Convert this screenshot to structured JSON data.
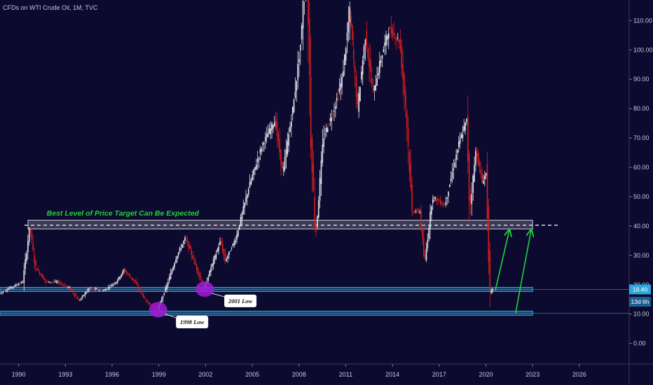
{
  "header": {
    "symbol_line": "CFDs on WTI Crude Oil, 1M, TVC"
  },
  "colors": {
    "background": "#0c0a2e",
    "up_candle": "#e8e8f0",
    "down_candle": "#d81e1e",
    "zone_line": "#2aa9e0",
    "target_box": "#c8c8d0",
    "arrow": "#22d43a",
    "ellipse": "#a21bd6",
    "annotation_green": "#22d43a"
  },
  "chart_data": {
    "type": "candlestick",
    "x_axis": {
      "range": [
        1988.8,
        2029.2
      ],
      "tick_labels": [
        "1990",
        "1993",
        "1996",
        "1999",
        "2002",
        "2005",
        "2008",
        "2011",
        "2014",
        "2017",
        "2020",
        "2023",
        "2026"
      ],
      "tick_values": [
        1990,
        1993,
        1996,
        1999,
        2002,
        2005,
        2008,
        2011,
        2014,
        2017,
        2020,
        2023,
        2026
      ]
    },
    "y_axis": {
      "range": [
        -7,
        117
      ],
      "tick_labels": [
        "0.00",
        "10.00",
        "20.00",
        "30.00",
        "40.00",
        "50.00",
        "60.00",
        "70.00",
        "80.00",
        "90.00",
        "100.00",
        "110.00"
      ],
      "tick_values": [
        0,
        10,
        20,
        30,
        40,
        50,
        60,
        70,
        80,
        90,
        100,
        110
      ],
      "position": "right"
    },
    "price_path": [
      [
        1988.8,
        17
      ],
      [
        1989.5,
        19
      ],
      [
        1990.3,
        21
      ],
      [
        1990.75,
        40
      ],
      [
        1991.1,
        26
      ],
      [
        1991.8,
        21
      ],
      [
        1992.5,
        21
      ],
      [
        1993.3,
        19
      ],
      [
        1993.9,
        14.5
      ],
      [
        1994.6,
        19
      ],
      [
        1995.5,
        18
      ],
      [
        1996.3,
        21
      ],
      [
        1996.8,
        25
      ],
      [
        1997.5,
        21
      ],
      [
        1998.2,
        14.5
      ],
      [
        1998.95,
        11.5
      ],
      [
        1999.5,
        19
      ],
      [
        2000.2,
        30
      ],
      [
        2000.75,
        36
      ],
      [
        2001.3,
        28
      ],
      [
        2001.95,
        18.5
      ],
      [
        2002.4,
        26
      ],
      [
        2003.0,
        35
      ],
      [
        2003.3,
        28
      ],
      [
        2004.0,
        36
      ],
      [
        2004.8,
        53
      ],
      [
        2005.7,
        68
      ],
      [
        2006.5,
        76
      ],
      [
        2007.0,
        58
      ],
      [
        2007.7,
        82
      ],
      [
        2008.2,
        105
      ],
      [
        2008.5,
        145
      ],
      [
        2008.8,
        70
      ],
      [
        2009.1,
        36
      ],
      [
        2009.6,
        70
      ],
      [
        2010.3,
        80
      ],
      [
        2010.8,
        90
      ],
      [
        2011.3,
        113
      ],
      [
        2011.8,
        80
      ],
      [
        2012.3,
        105
      ],
      [
        2012.8,
        85
      ],
      [
        2013.3,
        97
      ],
      [
        2013.8,
        107
      ],
      [
        2014.5,
        103
      ],
      [
        2014.9,
        80
      ],
      [
        2015.3,
        45
      ],
      [
        2015.8,
        45
      ],
      [
        2016.1,
        27
      ],
      [
        2016.6,
        50
      ],
      [
        2017.4,
        47
      ],
      [
        2018.3,
        68
      ],
      [
        2018.8,
        76
      ],
      [
        2019.0,
        45
      ],
      [
        2019.4,
        66
      ],
      [
        2019.8,
        55
      ],
      [
        2020.05,
        58
      ],
      [
        2020.3,
        17
      ],
      [
        2020.45,
        18.4
      ]
    ],
    "horizontal_levels": [
      {
        "kind": "support-line",
        "value": 18.4
      },
      {
        "kind": "support-line",
        "value": 10.3
      },
      {
        "kind": "dashed-target",
        "value": 40.3
      }
    ],
    "target_zone": {
      "from_x": 1990.6,
      "to_x": 2023.0,
      "low": 39.0,
      "high": 42.0
    },
    "arrows": [
      {
        "from": [
          2020.6,
          18.0
        ],
        "to": [
          2021.5,
          38.5
        ]
      },
      {
        "from": [
          2021.9,
          10.2
        ],
        "to": [
          2022.9,
          38.5
        ]
      }
    ],
    "annotations": [
      {
        "text": "Best Level of Price Target Can Be Expected",
        "x": 1991.8,
        "y": 43.5,
        "style": "green-italic"
      },
      {
        "text": "2001 Low",
        "x": 2003.2,
        "y": 14.5,
        "style": "callout",
        "marker_x": 2001.95,
        "marker_y": 18.5
      },
      {
        "text": "1998 Low",
        "x": 2000.1,
        "y": 7.3,
        "style": "callout",
        "marker_x": 1998.95,
        "marker_y": 11.5
      }
    ],
    "price_labels": [
      {
        "text": "18.40",
        "value": 18.4,
        "style": "price"
      },
      {
        "text": "13d 6h",
        "value": 14.2,
        "style": "countdown"
      }
    ]
  }
}
